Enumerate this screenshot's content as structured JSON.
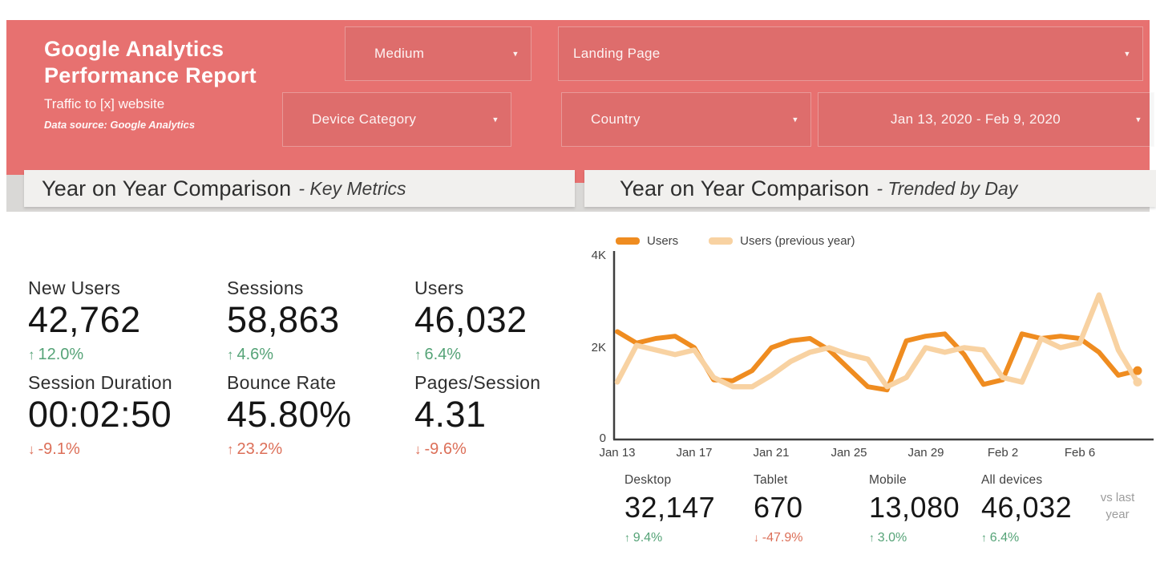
{
  "icons": {
    "chevron_down": "▾"
  },
  "theme": {
    "accent_red": "#e77170",
    "positive_green": "#55a377",
    "negative_red": "#dc6f58",
    "series_orange": "#ef8c20",
    "series_light_orange": "#f8d2a2"
  },
  "header": {
    "title": "Google Analytics Performance Report",
    "subtitle": "Traffic to [x] website",
    "data_source": "Data source: Google Analytics",
    "filters": [
      {
        "label": "Medium"
      },
      {
        "label": "Landing Page"
      },
      {
        "label": "Device Category"
      },
      {
        "label": "Country"
      },
      {
        "label": "Jan 13, 2020 - Feb 9, 2020"
      }
    ]
  },
  "sections": {
    "left_title": "Year on Year Comparison",
    "left_sub": "- Key Metrics",
    "right_title": "Year on Year Comparison",
    "right_sub": "- Trended by Day"
  },
  "key_metrics": [
    {
      "label": "New Users",
      "value": "42,762",
      "arrow": "↑",
      "delta": "12.0%"
    },
    {
      "label": "Sessions",
      "value": "58,863",
      "arrow": "↑",
      "delta": "4.6%"
    },
    {
      "label": "Users",
      "value": "46,032",
      "arrow": "↑",
      "delta": "6.4%"
    },
    {
      "label": "Session Duration",
      "value": "00:02:50",
      "arrow": "↓",
      "delta": "-9.1%"
    },
    {
      "label": "Bounce Rate",
      "value": "45.80%",
      "arrow": "↑",
      "delta": "23.2%"
    },
    {
      "label": "Pages/Session",
      "value": "4.31",
      "arrow": "↓",
      "delta": "-9.6%"
    }
  ],
  "devices": [
    {
      "label": "Desktop",
      "value": "32,147",
      "arrow": "↑",
      "delta": "9.4%"
    },
    {
      "label": "Tablet",
      "value": "670",
      "arrow": "↓",
      "delta": "-47.9%"
    },
    {
      "label": "Mobile",
      "value": "13,080",
      "arrow": "↑",
      "delta": "3.0%"
    },
    {
      "label": "All devices",
      "value": "46,032",
      "arrow": "↑",
      "delta": "6.4%"
    }
  ],
  "vs_last_year": "vs last\nyear",
  "chart_data": {
    "type": "line",
    "title": "Year on Year Comparison - Trended by Day",
    "xlabel": "",
    "ylabel": "",
    "ylim": [
      0,
      4000
    ],
    "y_ticks": [
      "0",
      "2K",
      "4K"
    ],
    "x_tick_labels": [
      "Jan 13",
      "Jan 17",
      "Jan 21",
      "Jan 25",
      "Jan 29",
      "Feb 2",
      "Feb 6"
    ],
    "x": [
      "Jan 13",
      "Jan 14",
      "Jan 15",
      "Jan 16",
      "Jan 17",
      "Jan 18",
      "Jan 19",
      "Jan 20",
      "Jan 21",
      "Jan 22",
      "Jan 23",
      "Jan 24",
      "Jan 25",
      "Jan 26",
      "Jan 27",
      "Jan 28",
      "Jan 29",
      "Jan 30",
      "Jan 31",
      "Feb 1",
      "Feb 2",
      "Feb 3",
      "Feb 4",
      "Feb 5",
      "Feb 6",
      "Feb 7",
      "Feb 8",
      "Feb 9"
    ],
    "legend_position": "top",
    "grid": false,
    "series": [
      {
        "name": "Users",
        "color": "#ef8c20",
        "values": [
          2350,
          2100,
          2200,
          2250,
          2000,
          1300,
          1280,
          1500,
          2000,
          2150,
          2200,
          1950,
          1550,
          1150,
          1080,
          2150,
          2250,
          2300,
          1850,
          1200,
          1300,
          2300,
          2200,
          2250,
          2200,
          1900,
          1400,
          1500
        ]
      },
      {
        "name": "Users (previous year)",
        "color": "#f8d2a2",
        "values": [
          1250,
          2050,
          1950,
          1850,
          1950,
          1350,
          1150,
          1150,
          1400,
          1700,
          1900,
          2000,
          1850,
          1750,
          1150,
          1350,
          2000,
          1900,
          2000,
          1950,
          1350,
          1250,
          2200,
          2000,
          2100,
          3150,
          1950,
          1250
        ]
      }
    ]
  }
}
